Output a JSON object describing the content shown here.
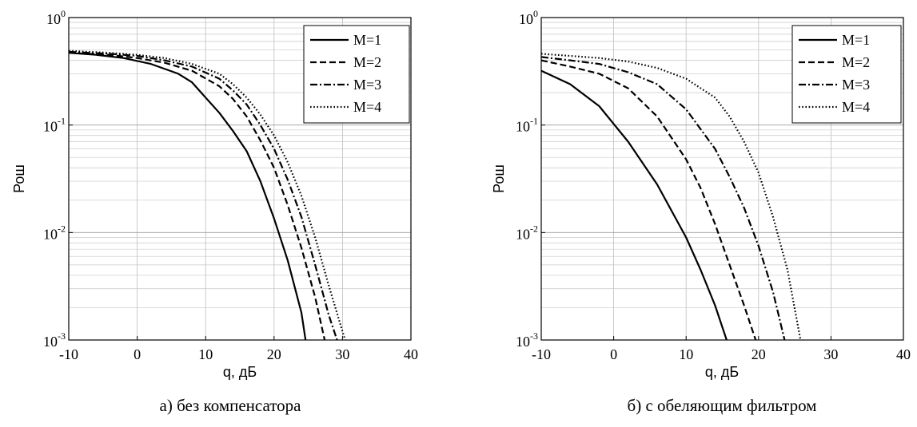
{
  "chart_data": [
    {
      "type": "line",
      "caption": "а) без компенсатора",
      "xlabel": "q, дБ",
      "ylabel": "Рош",
      "xlim": [
        -10,
        40
      ],
      "ylim": [
        0.001,
        1
      ],
      "yscale": "log",
      "grid": true,
      "legend_position": "top-right",
      "x_ticks": [
        "-10",
        "0",
        "10",
        "20",
        "30",
        "40"
      ],
      "y_ticks": [
        {
          "base": "10",
          "exp": "0"
        },
        {
          "base": "10",
          "exp": "-1"
        },
        {
          "base": "10",
          "exp": "-2"
        },
        {
          "base": "10",
          "exp": "-3"
        }
      ],
      "series": [
        {
          "name": "M=1",
          "style": "solid",
          "x": [
            -10,
            -6,
            -2,
            2,
            6,
            8,
            10,
            12,
            14,
            16,
            18,
            20,
            22,
            24,
            24.6
          ],
          "y": [
            0.47,
            0.45,
            0.42,
            0.37,
            0.3,
            0.25,
            0.18,
            0.13,
            0.088,
            0.057,
            0.03,
            0.0135,
            0.0055,
            0.0018,
            0.001
          ]
        },
        {
          "name": "M=2",
          "style": "dashed",
          "x": [
            -10,
            -4,
            0,
            4,
            8,
            12,
            14,
            16,
            18,
            20,
            22,
            24,
            26,
            27.4
          ],
          "y": [
            0.47,
            0.45,
            0.42,
            0.38,
            0.32,
            0.23,
            0.175,
            0.12,
            0.072,
            0.04,
            0.018,
            0.0072,
            0.0025,
            0.001
          ]
        },
        {
          "name": "M=3",
          "style": "dashdot",
          "x": [
            -10,
            -4,
            0,
            4,
            8,
            12,
            14,
            16,
            18,
            20,
            22,
            24,
            26,
            28,
            29.2
          ],
          "y": [
            0.48,
            0.46,
            0.44,
            0.4,
            0.35,
            0.27,
            0.21,
            0.155,
            0.1,
            0.06,
            0.031,
            0.014,
            0.005,
            0.0017,
            0.001
          ]
        },
        {
          "name": "M=4",
          "style": "dotted",
          "x": [
            -10,
            -4,
            0,
            4,
            8,
            12,
            14,
            16,
            18,
            20,
            22,
            24,
            26,
            28,
            30,
            30.4
          ],
          "y": [
            0.49,
            0.47,
            0.45,
            0.42,
            0.37,
            0.3,
            0.24,
            0.18,
            0.125,
            0.08,
            0.045,
            0.022,
            0.009,
            0.0032,
            0.0012,
            0.001
          ]
        }
      ]
    },
    {
      "type": "line",
      "caption": "б)  с обеляющим фильтром",
      "xlabel": "q, дБ",
      "ylabel": "Рош",
      "xlim": [
        -10,
        40
      ],
      "ylim": [
        0.001,
        1
      ],
      "yscale": "log",
      "grid": true,
      "legend_position": "top-right",
      "x_ticks": [
        "-10",
        "0",
        "10",
        "20",
        "30",
        "40"
      ],
      "y_ticks": [
        {
          "base": "10",
          "exp": "0"
        },
        {
          "base": "10",
          "exp": "-1"
        },
        {
          "base": "10",
          "exp": "-2"
        },
        {
          "base": "10",
          "exp": "-3"
        }
      ],
      "series": [
        {
          "name": "M=1",
          "style": "solid",
          "x": [
            -10,
            -6,
            -2,
            2,
            6,
            10,
            12,
            14,
            15.6
          ],
          "y": [
            0.32,
            0.24,
            0.15,
            0.07,
            0.028,
            0.009,
            0.0045,
            0.0021,
            0.001
          ]
        },
        {
          "name": "M=2",
          "style": "dashed",
          "x": [
            -10,
            -6,
            -2,
            2,
            6,
            10,
            12,
            14,
            16,
            18,
            19.6
          ],
          "y": [
            0.4,
            0.35,
            0.3,
            0.22,
            0.12,
            0.048,
            0.026,
            0.012,
            0.005,
            0.0021,
            0.001
          ]
        },
        {
          "name": "M=3",
          "style": "dashdot",
          "x": [
            -10,
            -6,
            -2,
            2,
            6,
            10,
            14,
            16,
            18,
            20,
            22,
            23.6
          ],
          "y": [
            0.43,
            0.4,
            0.37,
            0.31,
            0.24,
            0.14,
            0.06,
            0.033,
            0.017,
            0.0075,
            0.0028,
            0.001
          ]
        },
        {
          "name": "M=4",
          "style": "dotted",
          "x": [
            -10,
            -6,
            -2,
            2,
            6,
            10,
            14,
            16,
            18,
            20,
            22,
            24,
            25.8
          ],
          "y": [
            0.46,
            0.44,
            0.42,
            0.39,
            0.34,
            0.27,
            0.18,
            0.12,
            0.07,
            0.036,
            0.014,
            0.0045,
            0.001
          ]
        }
      ]
    }
  ]
}
